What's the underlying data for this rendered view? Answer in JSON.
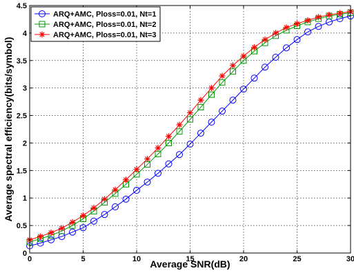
{
  "chart_data": {
    "type": "line",
    "xlabel": "Average SNR(dB)",
    "ylabel": "Average spectral efficiency(bits/symbol)",
    "xlim": [
      0,
      30
    ],
    "ylim": [
      0,
      4.5
    ],
    "xticks": [
      "0",
      "5",
      "10",
      "15",
      "20",
      "25",
      "30"
    ],
    "yticks": [
      "0",
      "0.5",
      "1",
      "1.5",
      "2",
      "2.5",
      "3",
      "3.5",
      "4",
      "4.5"
    ],
    "grid": true,
    "legend_position": "top-left",
    "x": [
      0,
      1,
      2,
      3,
      4,
      5,
      6,
      7,
      8,
      9,
      10,
      11,
      12,
      13,
      14,
      15,
      16,
      17,
      18,
      19,
      20,
      21,
      22,
      23,
      24,
      25,
      26,
      27,
      28,
      29,
      30
    ],
    "series": [
      {
        "name": "ARQ+AMC, Ploss=0.01, Nt=1",
        "color": "#0000ff",
        "marker": "circle",
        "values": [
          0.13,
          0.18,
          0.24,
          0.3,
          0.38,
          0.46,
          0.58,
          0.7,
          0.84,
          0.98,
          1.14,
          1.29,
          1.45,
          1.62,
          1.79,
          1.98,
          2.18,
          2.38,
          2.58,
          2.78,
          2.98,
          3.18,
          3.38,
          3.56,
          3.73,
          3.88,
          4.02,
          4.12,
          4.2,
          4.26,
          4.31
        ]
      },
      {
        "name": "ARQ+AMC, Ploss=0.01, Nt=2",
        "color": "#009900",
        "marker": "square",
        "values": [
          0.2,
          0.26,
          0.32,
          0.4,
          0.5,
          0.62,
          0.76,
          0.92,
          1.08,
          1.25,
          1.43,
          1.61,
          1.8,
          2.0,
          2.21,
          2.43,
          2.65,
          2.88,
          3.1,
          3.3,
          3.5,
          3.67,
          3.82,
          3.95,
          4.05,
          4.13,
          4.2,
          4.26,
          4.31,
          4.34,
          4.37
        ]
      },
      {
        "name": "ARQ+AMC, Ploss=0.01, Nt=3",
        "color": "#ff0000",
        "marker": "star",
        "values": [
          0.24,
          0.3,
          0.37,
          0.45,
          0.56,
          0.68,
          0.82,
          0.98,
          1.15,
          1.33,
          1.52,
          1.71,
          1.91,
          2.12,
          2.33,
          2.55,
          2.78,
          3.0,
          3.22,
          3.41,
          3.58,
          3.74,
          3.88,
          4.0,
          4.1,
          4.17,
          4.23,
          4.29,
          4.33,
          4.36,
          4.39
        ]
      }
    ]
  }
}
